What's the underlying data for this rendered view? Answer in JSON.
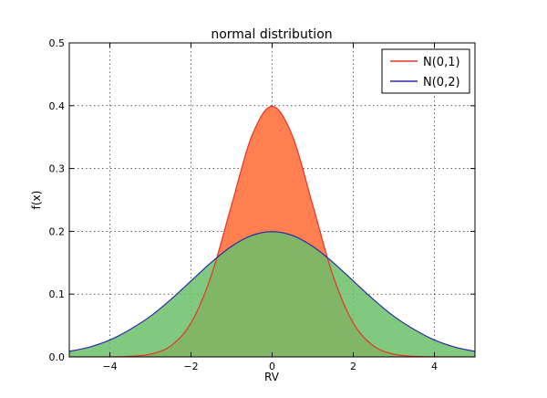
{
  "chart_data": {
    "type": "area",
    "title": "normal distribution",
    "xlabel": "RV",
    "ylabel": "f(x)",
    "xlim": [
      -5,
      5
    ],
    "ylim": [
      0,
      0.5
    ],
    "xticks": [
      -4,
      -2,
      0,
      2,
      4
    ],
    "xtick_labels": [
      "−4",
      "−2",
      "0",
      "2",
      "4"
    ],
    "yticks": [
      0.0,
      0.1,
      0.2,
      0.3,
      0.4,
      0.5
    ],
    "ytick_labels": [
      "0.0",
      "0.1",
      "0.2",
      "0.3",
      "0.4",
      "0.5"
    ],
    "grid": true,
    "legend_position": "top-right",
    "x": [
      -5,
      -4.5,
      -4,
      -3.5,
      -3,
      -2.5,
      -2,
      -1.5,
      -1,
      -0.5,
      0,
      0.5,
      1,
      1.5,
      2,
      2.5,
      3,
      3.5,
      4,
      4.5,
      5
    ],
    "series": [
      {
        "name": "N(0,1)",
        "line_color": "#e8352a",
        "fill_color": "#ff7f50",
        "values": [
          1.5e-06,
          1.6e-05,
          0.000134,
          0.000873,
          0.004432,
          0.017528,
          0.053991,
          0.129518,
          0.241971,
          0.352065,
          0.398942,
          0.352065,
          0.241971,
          0.129518,
          0.053991,
          0.017528,
          0.004432,
          0.000873,
          0.000134,
          1.6e-05,
          1.5e-06
        ]
      },
      {
        "name": "N(0,2)",
        "line_color": "#2b2ba8",
        "fill_color": "#6abf69",
        "values": [
          0.008764,
          0.015781,
          0.026995,
          0.043821,
          0.064759,
          0.091325,
          0.120985,
          0.150569,
          0.176033,
          0.193334,
          0.199471,
          0.193334,
          0.176033,
          0.150569,
          0.120985,
          0.091325,
          0.064759,
          0.043821,
          0.026995,
          0.015781,
          0.008764
        ]
      }
    ]
  }
}
